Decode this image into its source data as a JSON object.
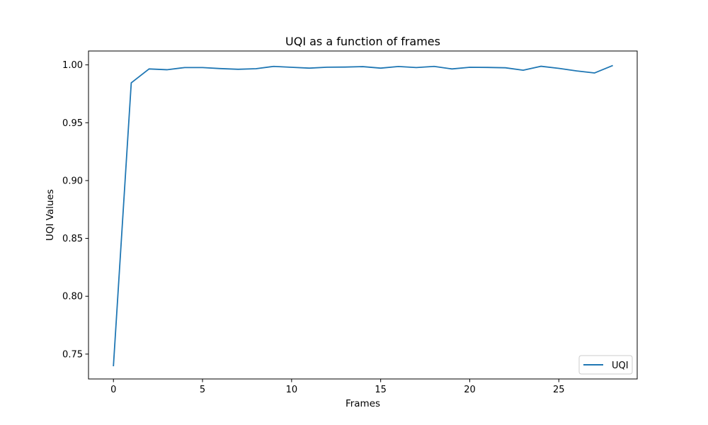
{
  "chart_data": {
    "type": "line",
    "title": "UQI as a function of frames",
    "xlabel": "Frames",
    "ylabel": "UQI Values",
    "xlim": [
      -1.4,
      29.4
    ],
    "ylim": [
      0.7285,
      1.012
    ],
    "xticks": [
      0,
      5,
      10,
      15,
      20,
      25
    ],
    "xtick_labels": [
      "0",
      "5",
      "10",
      "15",
      "20",
      "25"
    ],
    "yticks": [
      0.75,
      0.8,
      0.85,
      0.9,
      0.95,
      1.0
    ],
    "ytick_labels": [
      "0.75",
      "0.80",
      "0.85",
      "0.90",
      "0.95",
      "1.00"
    ],
    "grid": false,
    "legend_position": "lower-right",
    "series": [
      {
        "name": "UQI",
        "color": "#1f77b4",
        "x": [
          0,
          1,
          2,
          3,
          4,
          5,
          6,
          7,
          8,
          9,
          10,
          11,
          12,
          13,
          14,
          15,
          16,
          17,
          18,
          19,
          20,
          21,
          22,
          23,
          24,
          25,
          26,
          27,
          28
        ],
        "values": [
          0.74,
          0.9845,
          0.9965,
          0.9958,
          0.9977,
          0.9977,
          0.9968,
          0.9962,
          0.9967,
          0.9987,
          0.9979,
          0.9972,
          0.998,
          0.9981,
          0.9985,
          0.9972,
          0.9986,
          0.9977,
          0.9987,
          0.9965,
          0.9979,
          0.9978,
          0.9975,
          0.9954,
          0.9988,
          0.997,
          0.9948,
          0.993,
          0.9993
        ]
      }
    ]
  }
}
